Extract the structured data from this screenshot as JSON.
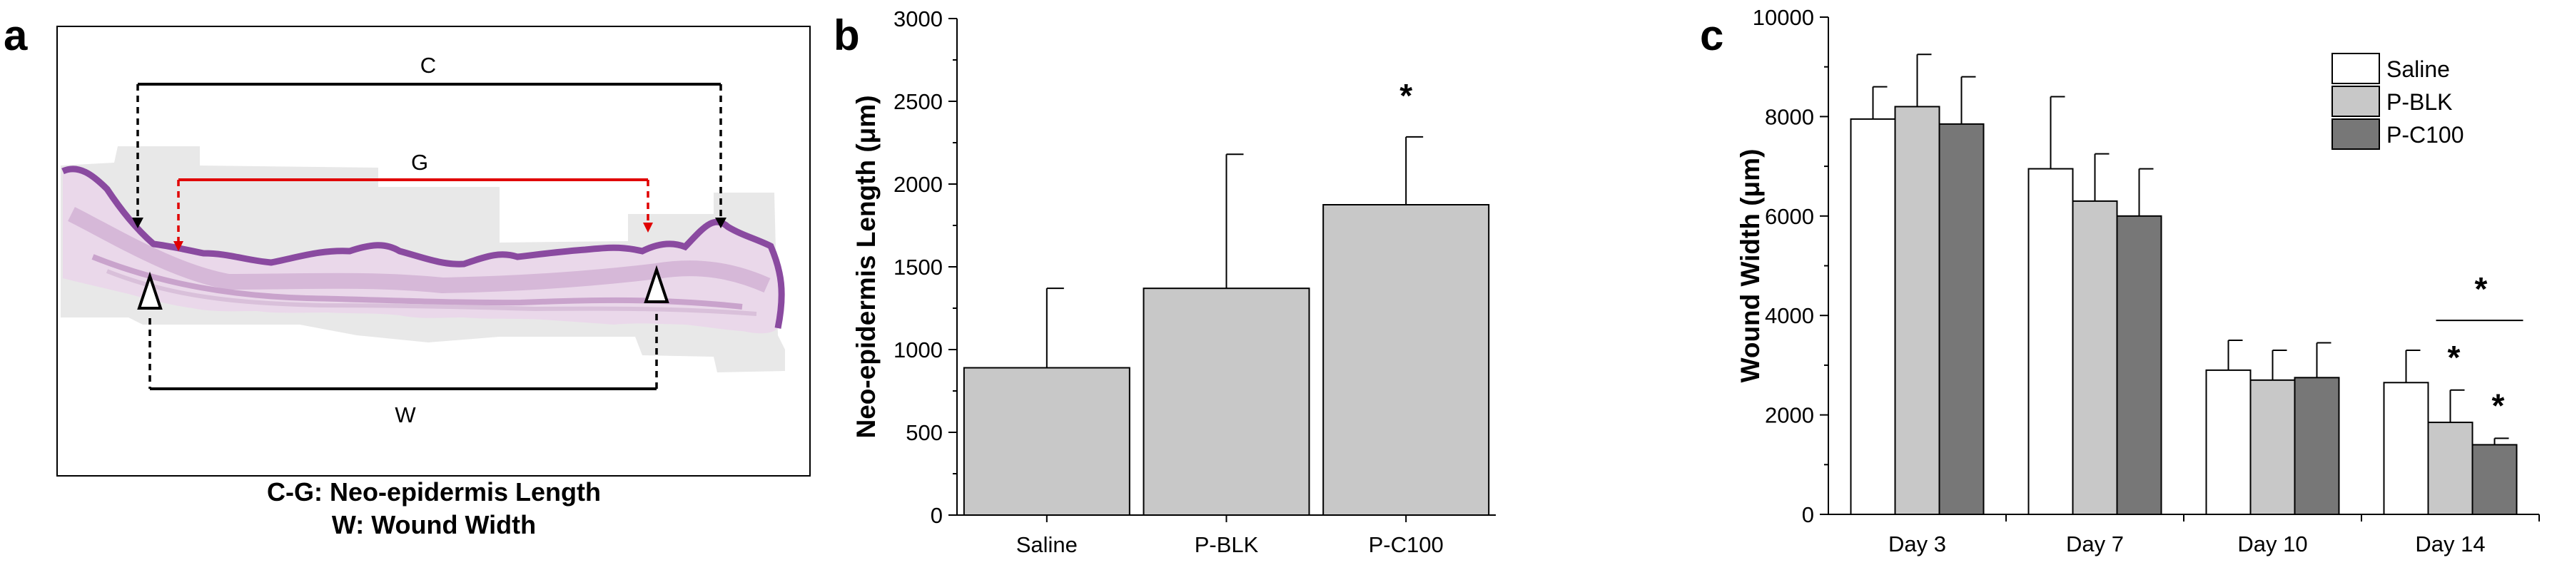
{
  "panel_a": {
    "letter": "a",
    "labels": {
      "c": "C",
      "g": "G",
      "w": "W"
    },
    "caption_lines": [
      "C-G: Neo-epidermis Length",
      "W: Wound Width"
    ]
  },
  "chart_data": [
    {
      "panel": "b",
      "type": "bar",
      "categories": [
        "Saline",
        "P-BLK",
        "P-C100"
      ],
      "values": [
        890,
        1370,
        1875
      ],
      "errors": [
        480,
        810,
        410
      ],
      "significance": [
        "",
        "",
        "*"
      ],
      "ylabel": "Neo-epidermis Length (μm)",
      "xlabel": "",
      "ylim": [
        0,
        3000
      ],
      "yticks": [
        0,
        500,
        1000,
        1500,
        2000,
        2500,
        3000
      ],
      "bar_color": "#c8c8c8"
    },
    {
      "panel": "c",
      "type": "bar",
      "categories": [
        "Day 3",
        "Day 7",
        "Day 10",
        "Day 14"
      ],
      "series": [
        {
          "name": "Saline",
          "values": [
            7950,
            6950,
            2900,
            2650
          ],
          "errors": [
            650,
            1450,
            600,
            650
          ],
          "color": "#ffffff"
        },
        {
          "name": "P-BLK",
          "values": [
            8200,
            6300,
            2700,
            1850
          ],
          "errors": [
            1050,
            950,
            600,
            650
          ],
          "color": "#c8c8c8"
        },
        {
          "name": "P-C100",
          "values": [
            7850,
            6000,
            2750,
            1400
          ],
          "errors": [
            950,
            950,
            700,
            130
          ],
          "color": "#777777"
        }
      ],
      "significance": {
        "star_1": "*",
        "star_2": "*",
        "star_3": "*"
      },
      "ylabel": "Wound Width (μm)",
      "xlabel": "",
      "ylim": [
        0,
        10000
      ],
      "yticks": [
        0,
        2000,
        4000,
        6000,
        8000,
        10000
      ],
      "legend_position": "top-right"
    }
  ]
}
